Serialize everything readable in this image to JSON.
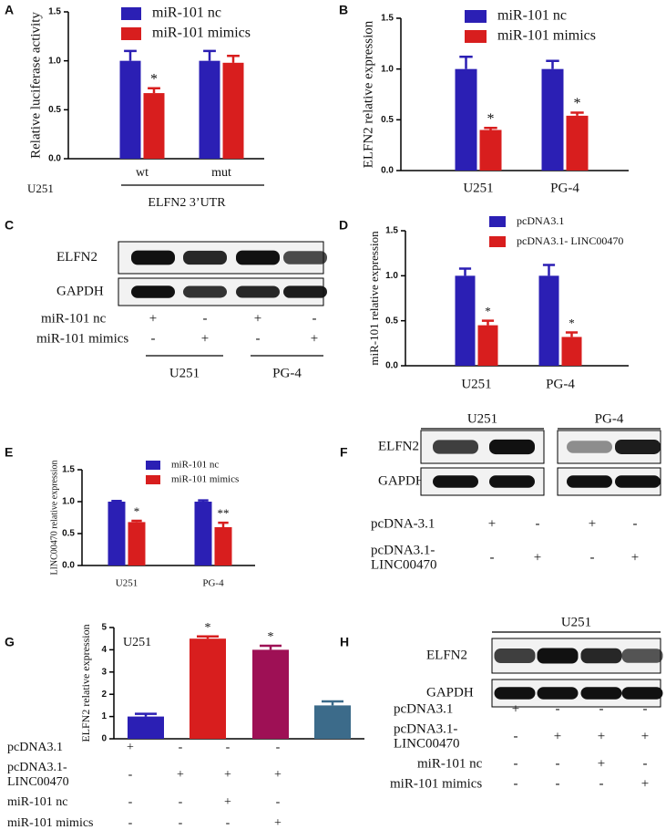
{
  "chart_data": [
    {
      "panel": "A",
      "type": "bar",
      "ylabel": "Relative luciferase activity",
      "categories": [
        "wt",
        "mut"
      ],
      "ylim": [
        0,
        1.5
      ],
      "yticks": [
        {
          "value": 0,
          "label": "0.0"
        },
        0.5,
        {
          "value": 1,
          "label": "1.0"
        },
        1.5
      ],
      "series": [
        {
          "name": "miR-101 nc",
          "color": "#2b1fb4",
          "values": [
            1.0,
            1.0
          ],
          "errors": [
            0.1,
            0.1
          ]
        },
        {
          "name": "miR-101 mimics",
          "color": "#d81e1e",
          "values": [
            0.67,
            0.98
          ],
          "errors": [
            0.05,
            0.07
          ],
          "annotations": [
            "*",
            null
          ]
        }
      ],
      "row_label": "U251",
      "group_label": "ELFN2  3’UTR"
    },
    {
      "panel": "B",
      "type": "bar",
      "ylabel": "ELFN2 relative expression",
      "categories": [
        "U251",
        "PG-4"
      ],
      "ylim": [
        0,
        1.5
      ],
      "yticks": [
        {
          "value": 0,
          "label": "0.0"
        },
        0.5,
        {
          "value": 1,
          "label": "1.0"
        },
        1.5
      ],
      "series": [
        {
          "name": "miR-101 nc",
          "color": "#2b1fb4",
          "values": [
            1.0,
            1.0
          ],
          "errors": [
            0.12,
            0.08
          ]
        },
        {
          "name": "miR-101 mimics",
          "color": "#d81e1e",
          "values": [
            0.4,
            0.54
          ],
          "errors": [
            0.02,
            0.03
          ],
          "annotations": [
            "*",
            "*"
          ]
        }
      ]
    },
    {
      "panel": "D",
      "type": "bar",
      "ylabel": "miR-101 relative expression",
      "categories": [
        "U251",
        "PG-4"
      ],
      "ylim": [
        0,
        1.5
      ],
      "yticks": [
        {
          "value": 0,
          "label": "0.0"
        },
        0.5,
        {
          "value": 1,
          "label": "1.0"
        },
        1.5
      ],
      "series": [
        {
          "name": "pcDNA3.1",
          "color": "#2b1fb4",
          "values": [
            1.0,
            1.0
          ],
          "errors": [
            0.08,
            0.12
          ]
        },
        {
          "name": "pcDNA3.1- LINC00470",
          "color": "#d81e1e",
          "values": [
            0.45,
            0.32
          ],
          "errors": [
            0.05,
            0.05
          ],
          "annotations": [
            "*",
            "*"
          ]
        }
      ]
    },
    {
      "panel": "E",
      "type": "bar",
      "ylabel": "LINC00470 relative expression",
      "categories": [
        "U251",
        "PG-4"
      ],
      "ylim": [
        0,
        1.5
      ],
      "yticks": [
        {
          "value": 0,
          "label": "0.0"
        },
        0.5,
        {
          "value": 1,
          "label": "1.0"
        },
        1.5
      ],
      "series": [
        {
          "name": "miR-101 nc",
          "color": "#2b1fb4",
          "values": [
            1.0,
            1.0
          ],
          "errors": [
            0.01,
            0.02
          ]
        },
        {
          "name": "miR-101 mimics",
          "color": "#d81e1e",
          "values": [
            0.68,
            0.6
          ],
          "errors": [
            0.02,
            0.07
          ],
          "annotations": [
            "*",
            "**"
          ]
        }
      ]
    },
    {
      "panel": "G",
      "type": "bar",
      "ylabel": "ELFN2 relative expression",
      "inset_label": "U251",
      "ylim": [
        0,
        5
      ],
      "yticks": [
        0,
        1,
        2,
        3,
        4,
        5
      ],
      "values": [
        1.0,
        4.5,
        4.0,
        1.5
      ],
      "errors": [
        0.12,
        0.1,
        0.18,
        0.18
      ],
      "colors": [
        "#2b1fb4",
        "#d81e1e",
        "#9e1055",
        "#3c6b8a"
      ],
      "annotations": [
        null,
        "*",
        "*",
        null
      ],
      "conditions": [
        {
          "label": [
            "pcDNA3.1"
          ],
          "signs": [
            "+",
            "-",
            "-",
            "-"
          ]
        },
        {
          "label": [
            "pcDNA3.1-",
            "LINC00470"
          ],
          "signs": [
            "-",
            "+",
            "+",
            "+"
          ]
        },
        {
          "label": [
            "miR-101 nc"
          ],
          "signs": [
            "-",
            "-",
            "+",
            "-"
          ]
        },
        {
          "label": [
            "miR-101 mimics"
          ],
          "signs": [
            "-",
            "-",
            "-",
            "+"
          ]
        }
      ]
    }
  ],
  "blots": [
    {
      "panel": "C",
      "bands": [
        "ELFN2",
        "GAPDH"
      ],
      "groups": [
        "U251",
        "PG-4"
      ],
      "conditions": [
        {
          "label": [
            "miR-101 nc"
          ],
          "signs": [
            "+",
            "-",
            "+",
            "-"
          ]
        },
        {
          "label": [
            "miR-101 mimics"
          ],
          "signs": [
            "-",
            "+",
            "-",
            "+"
          ]
        }
      ]
    },
    {
      "panel": "F",
      "bands": [
        "ELFN2",
        "GAPDH"
      ],
      "groups": [
        "U251",
        "PG-4"
      ],
      "conditions": [
        {
          "label": [
            "pcDNA-3.1"
          ],
          "signs": [
            "+",
            "-",
            "+",
            "-"
          ]
        },
        {
          "label": [
            "pcDNA3.1-",
            "LINC00470"
          ],
          "signs": [
            "-",
            "+",
            "-",
            "+"
          ]
        }
      ]
    },
    {
      "panel": "H",
      "bands": [
        "ELFN2",
        "GAPDH"
      ],
      "groups": [
        "U251"
      ],
      "conditions": [
        {
          "label": [
            "pcDNA3.1"
          ],
          "signs": [
            "+",
            "-",
            "-",
            "-"
          ]
        },
        {
          "label": [
            "pcDNA3.1-",
            "LINC00470"
          ],
          "signs": [
            "-",
            "+",
            "+",
            "+"
          ]
        },
        {
          "label": [
            "miR-101 nc"
          ],
          "signs": [
            "-",
            "-",
            "+",
            "-"
          ]
        },
        {
          "label": [
            "miR-101 mimics"
          ],
          "signs": [
            "-",
            "-",
            "-",
            "+"
          ]
        }
      ]
    }
  ]
}
